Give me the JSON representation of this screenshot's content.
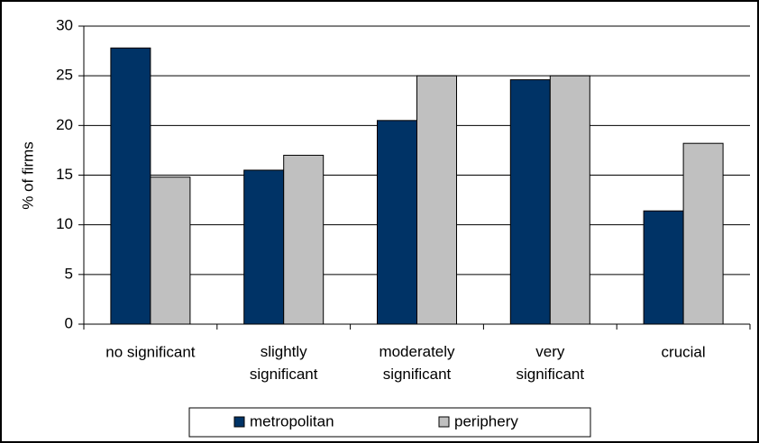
{
  "chart_data": {
    "type": "bar",
    "y_label": "% of firms",
    "categories": [
      "no significant",
      "slightly\nsignificant",
      "moderately\nsignificant",
      "very\nsignificant",
      "crucial"
    ],
    "series": [
      {
        "name": "metropolitan",
        "color": "#003366",
        "values": [
          27.8,
          15.5,
          20.5,
          24.6,
          11.4
        ]
      },
      {
        "name": "periphery",
        "color": "#c0c0c0",
        "values": [
          14.8,
          17,
          25,
          25,
          18.2
        ]
      }
    ],
    "ylim": [
      0,
      30
    ],
    "yticks": [
      0,
      5,
      10,
      15,
      20,
      25,
      30
    ],
    "grid": true,
    "legend": "bottom"
  }
}
